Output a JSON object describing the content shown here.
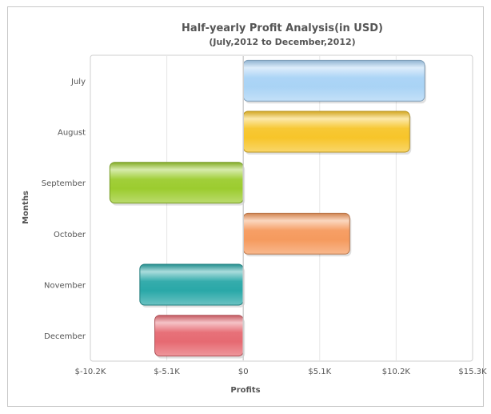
{
  "chart_data": {
    "type": "bar",
    "orientation": "horizontal",
    "title": "Half-yearly Profit Analysis(in USD)",
    "subtitle": "(July,2012 to December,2012)",
    "xlabel": "Profits",
    "ylabel": "Months",
    "categories": [
      "July",
      "August",
      "September",
      "October",
      "November",
      "December"
    ],
    "values": [
      12100,
      11100,
      -8900,
      7100,
      -6900,
      -5900
    ],
    "xlim": [
      -10200,
      15300
    ],
    "ticks": [
      -10200,
      -5100,
      0,
      5100,
      10200,
      15300
    ],
    "tick_labels": [
      "$-10.2K",
      "$-5.1K",
      "$0",
      "$5.1K",
      "$10.2K",
      "$15.3K"
    ],
    "grid": true,
    "colors": [
      "#a9d3f5",
      "#f7c52a",
      "#9ccc2f",
      "#f59a5e",
      "#2aa8a8",
      "#e66a72"
    ]
  }
}
